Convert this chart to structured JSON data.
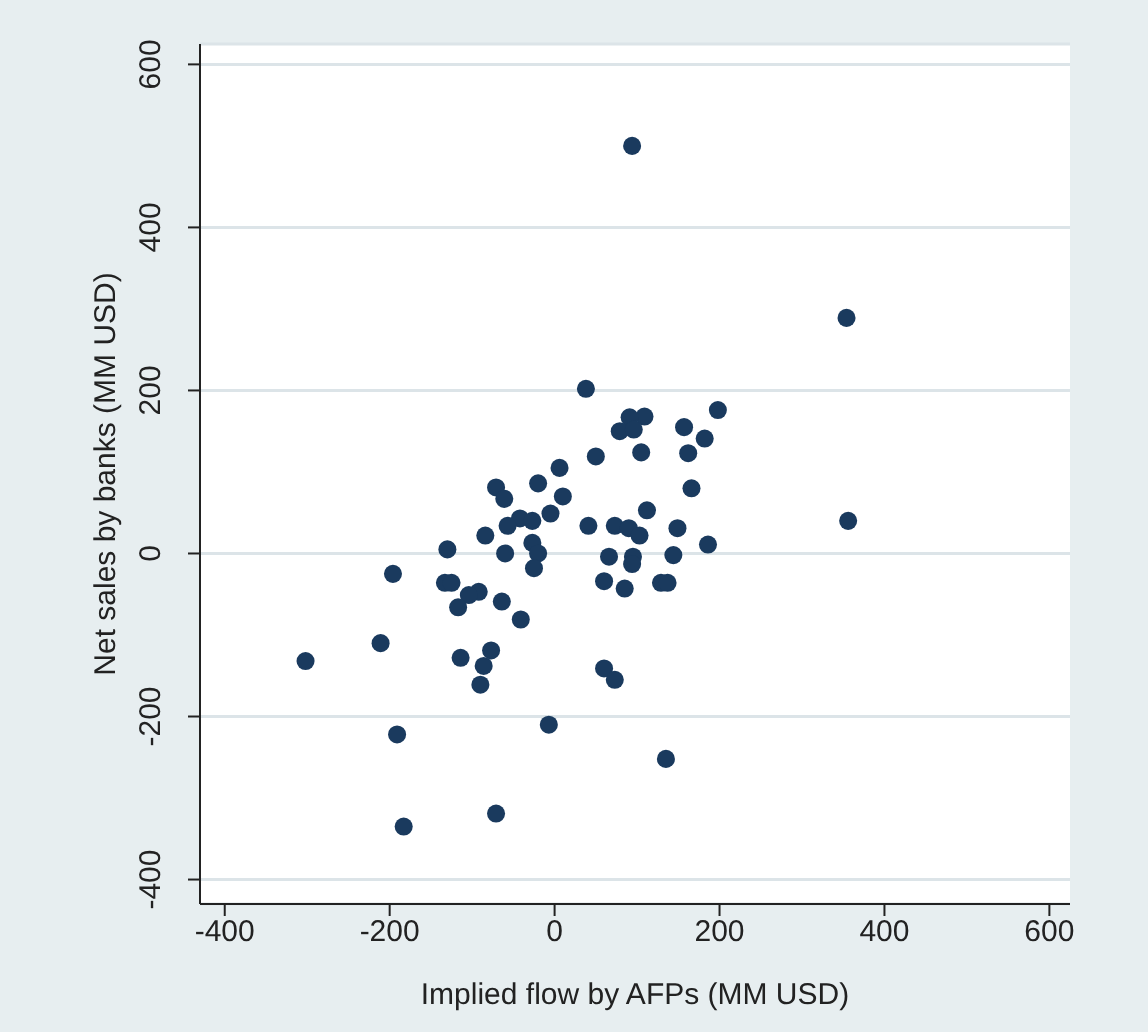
{
  "chart_data": {
    "type": "scatter",
    "xlabel": "Implied flow by AFPs (MM USD)",
    "ylabel": "Net sales by banks (MM USD)",
    "xlim": [
      -430,
      625
    ],
    "ylim": [
      -430,
      625
    ],
    "xticks": [
      -400,
      -200,
      0,
      200,
      400,
      600
    ],
    "yticks": [
      -400,
      -200,
      0,
      200,
      400,
      600
    ],
    "grid": "y",
    "marker": "circle",
    "series": [
      {
        "color": "#1a3a5e",
        "x": [
          94,
          354,
          356,
          38,
          198,
          109,
          91,
          79,
          96,
          157,
          182,
          105,
          162,
          50,
          6,
          -20,
          166,
          -71,
          -61,
          10,
          -5,
          112,
          -42,
          -27,
          -57,
          41,
          73,
          90,
          103,
          149,
          -84,
          -27,
          186,
          -130,
          -60,
          -20,
          66,
          95,
          144,
          94,
          -25,
          -196,
          60,
          85,
          129,
          137,
          -133,
          -125,
          -92,
          -104,
          -64,
          -117,
          -41,
          -211,
          -302,
          -77,
          -114,
          -86,
          60,
          -90,
          73,
          -7,
          -191,
          135,
          -71,
          -183
        ],
        "values": [
          500,
          289,
          40,
          202,
          176,
          168,
          167,
          150,
          152,
          155,
          141,
          124,
          123,
          119,
          105,
          86,
          80,
          81,
          67,
          70,
          49,
          53,
          43,
          40,
          34,
          34,
          34,
          31,
          22,
          31,
          22,
          13,
          11,
          5,
          0,
          0,
          -4,
          -4,
          -2,
          -13,
          -18,
          -25,
          -34,
          -43,
          -36,
          -36,
          -36,
          -36,
          -47,
          -51,
          -59,
          -66,
          -81,
          -110,
          -132,
          -119,
          -128,
          -138,
          -141,
          -161,
          -155,
          -210,
          -222,
          -252,
          -319,
          -335
        ]
      }
    ]
  }
}
